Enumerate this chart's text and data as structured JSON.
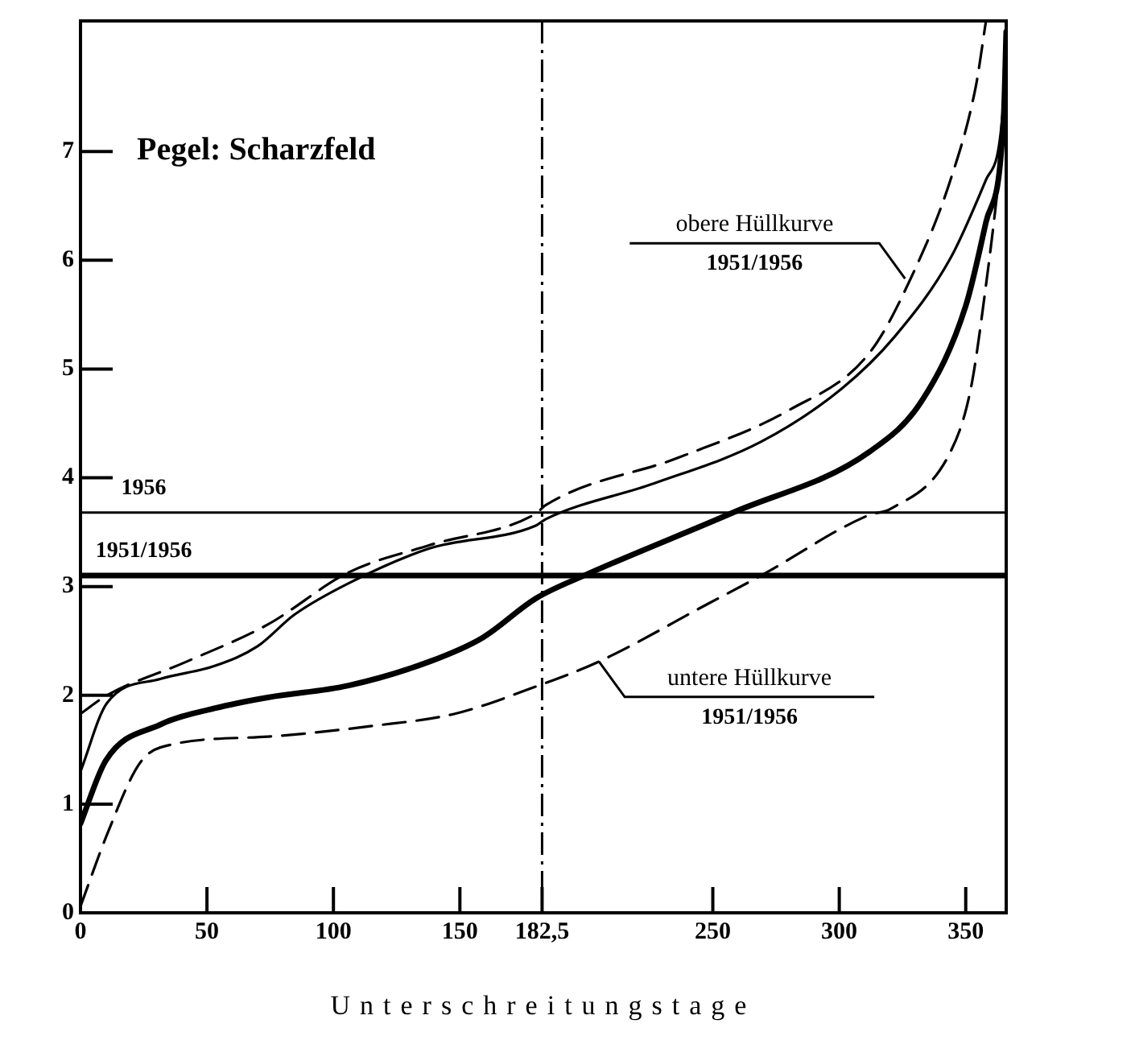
{
  "chart_data": {
    "type": "line",
    "title": "Pegel: Scharzfeld",
    "xlabel": "Unterschreitungstage",
    "xlim": [
      0,
      366
    ],
    "ylim": [
      0,
      8.2
    ],
    "xticks": [
      0,
      50,
      100,
      150,
      {
        "value": 182.5,
        "label": "182,5"
      },
      250,
      300,
      350
    ],
    "yticks": [
      0,
      1,
      2,
      3,
      4,
      5,
      6,
      7
    ],
    "grid": false,
    "legend": false,
    "marker": "none",
    "series": [
      {
        "color": "#000000",
        "line_style": "solid",
        "x": [
          0,
          10,
          31.5,
          53,
          74,
          106,
          138,
          159,
          180,
          199,
          258,
          312,
          333,
          350,
          358,
          365,
          366
        ],
        "values": [
          0.82,
          1.4,
          1.73,
          1.88,
          1.98,
          2.09,
          2.31,
          2.53,
          2.89,
          3.1,
          3.68,
          4.24,
          4.72,
          5.58,
          6.35,
          7.32,
          8.1
        ]
      },
      {
        "color": "#000000",
        "line_style": "solid",
        "x": [
          0,
          10.5,
          31.5,
          53,
          70,
          84.5,
          106,
          138,
          180,
          184,
          227,
          269,
          301,
          322,
          344,
          358,
          365,
          366
        ],
        "values": [
          1.3,
          1.93,
          2.15,
          2.27,
          2.45,
          2.74,
          3.03,
          3.35,
          3.56,
          3.62,
          3.95,
          4.33,
          4.82,
          5.3,
          6.02,
          6.74,
          7.46,
          8.2
        ]
      },
      {
        "color": "#000000",
        "line_style": "dashed",
        "x": [
          0,
          10.5,
          42,
          74,
          106,
          138,
          180,
          184,
          237,
          280,
          312,
          329,
          344,
          354,
          358
        ],
        "values": [
          1.83,
          2.0,
          2.31,
          2.65,
          3.13,
          3.38,
          3.67,
          3.75,
          4.19,
          4.62,
          5.15,
          5.87,
          6.74,
          7.6,
          8.2
        ]
      },
      {
        "color": "#000000",
        "line_style": "dashed",
        "x": [
          0,
          10.5,
          23,
          31.5,
          74,
          116,
          148,
          180,
          205,
          248,
          269,
          312,
          320,
          344,
          352,
          358,
          363,
          366
        ],
        "values": [
          0.06,
          0.72,
          1.36,
          1.52,
          1.62,
          1.72,
          1.83,
          2.08,
          2.31,
          2.84,
          3.1,
          3.66,
          3.71,
          4.24,
          4.82,
          5.77,
          6.74,
          7.46
        ]
      }
    ],
    "ref_lines": [
      {
        "axis": "y",
        "value": 3.68,
        "color": "#000000",
        "line_style": "solid"
      },
      {
        "axis": "y",
        "value": 3.1,
        "color": "#000000",
        "line_style": "solid"
      },
      {
        "axis": "x",
        "value": 182.5,
        "color": "#000000",
        "line_style": "dashed"
      }
    ],
    "annotations": [
      {
        "text": "1956",
        "x": 25,
        "y": 3.68
      },
      {
        "text": "1951/1956",
        "x": 25,
        "y": 3.1
      },
      {
        "text": "obere Hüllkurve\n1951/1956",
        "x": 326,
        "y": 5.83
      },
      {
        "text": "untere Hüllkurve\n1951/1956",
        "x": 205,
        "y": 2.31
      }
    ]
  }
}
